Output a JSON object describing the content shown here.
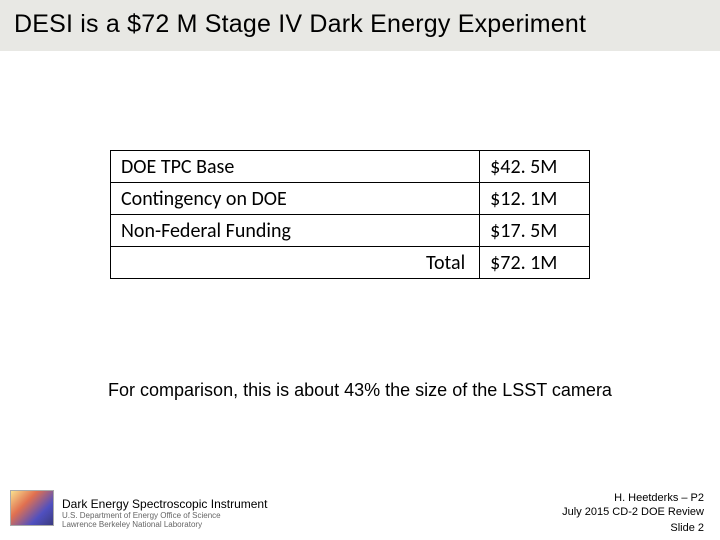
{
  "title": "DESI is a $72 M Stage IV Dark Energy Experiment",
  "budget_table": {
    "rows": [
      {
        "label": "DOE TPC Base",
        "value": "$42. 5M"
      },
      {
        "label": "Contingency on DOE",
        "value": "$12. 1M"
      },
      {
        "label": "Non-Federal Funding",
        "value": "$17. 5M"
      }
    ],
    "total_label": "Total",
    "total_value": "$72. 1M"
  },
  "comparison_text": "For comparison, this is about 43% the size of the LSST camera",
  "footer": {
    "instrument_title": "Dark Energy Spectroscopic Instrument",
    "dept_line1": "U.S. Department of Energy Office of Science",
    "dept_line2": "Lawrence Berkeley National Laboratory",
    "author": "H. Heetderks – P2",
    "review": "July 2015 CD-2 DOE Review",
    "slide_number": "Slide 2"
  },
  "colors": {
    "title_bg": "#e8e8e4",
    "text": "#000000",
    "border": "#000000",
    "footer_sub": "#666666"
  }
}
